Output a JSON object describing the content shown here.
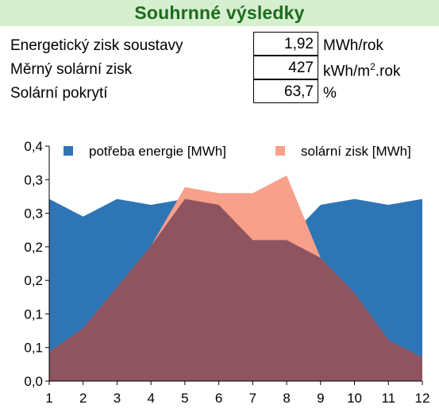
{
  "title": "Souhrnné výsledky",
  "summary": {
    "rows": [
      {
        "label": "Energetický zisk soustavy",
        "value": "1,92",
        "unit": "MWh/rok"
      },
      {
        "label": "Měrný solární zisk",
        "value": "427",
        "unit_pre": "kWh/m",
        "unit_sup": "2",
        "unit_post": ".rok"
      },
      {
        "label": "Solární pokrytí",
        "value": "63,7",
        "unit": "%"
      }
    ]
  },
  "chart_data": {
    "type": "area",
    "x": [
      1,
      2,
      3,
      4,
      5,
      6,
      7,
      8,
      9,
      10,
      11,
      12
    ],
    "series": [
      {
        "name": "potřeba energie [MWh]",
        "color": "#2e75b6",
        "values": [
          0.31,
          0.28,
          0.31,
          0.3,
          0.31,
          0.3,
          0.24,
          0.24,
          0.3,
          0.31,
          0.3,
          0.31
        ]
      },
      {
        "name": "solární zisk [MWh]",
        "color": "#f8a08a",
        "values": [
          0.05,
          0.09,
          0.16,
          0.23,
          0.33,
          0.32,
          0.32,
          0.35,
          0.21,
          0.15,
          0.07,
          0.04
        ]
      }
    ],
    "overlap_color": "#8e5560",
    "ylim": [
      0,
      0.4
    ],
    "ytick_labels": [
      "0,0",
      "0,1",
      "0,1",
      "0,2",
      "0,2",
      "0,3",
      "0,3",
      "0,4"
    ],
    "xtick_labels": [
      "1",
      "2",
      "3",
      "4",
      "5",
      "6",
      "7",
      "8",
      "9",
      "10",
      "11",
      "12"
    ],
    "legend": "top"
  }
}
